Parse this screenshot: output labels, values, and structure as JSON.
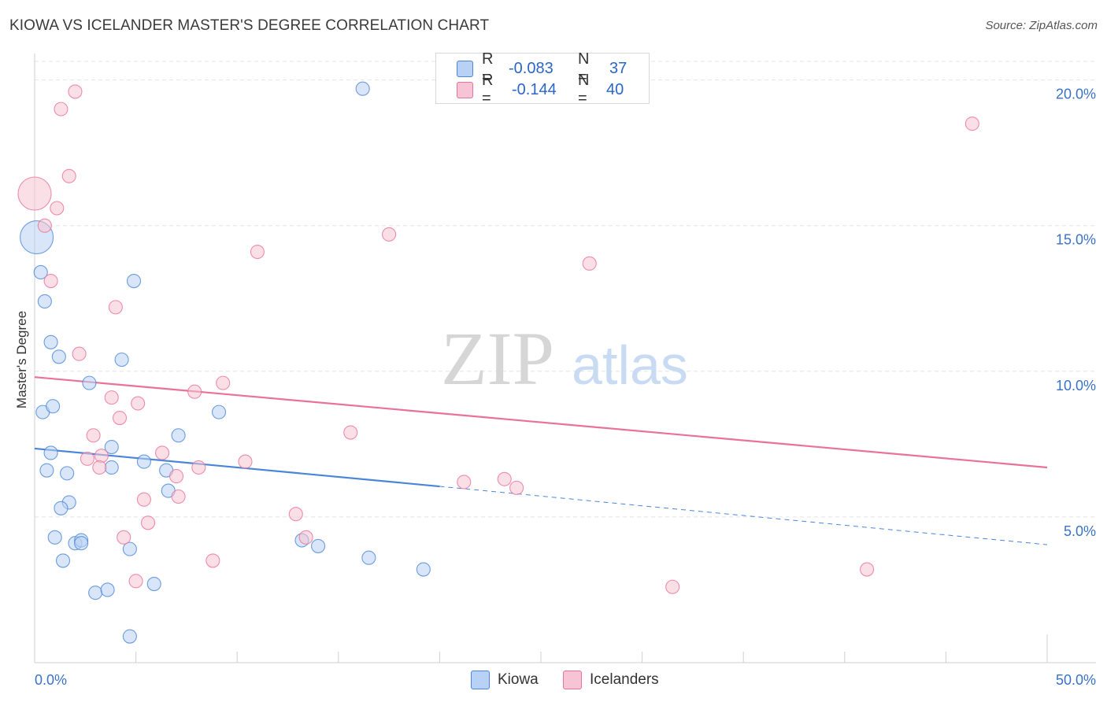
{
  "title": "KIOWA VS ICELANDER MASTER'S DEGREE CORRELATION CHART",
  "source": "Source: ZipAtlas.com",
  "watermark": {
    "zip": "ZIP",
    "atlas": "atlas"
  },
  "colors": {
    "blue": "#4a86d8",
    "blue_fill": "#b9d1f4",
    "pink": "#e8729a",
    "pink_fill": "#f6c4d4",
    "axis_text": "#3a72c4"
  },
  "stats": {
    "kiowa": {
      "r_label": "R =",
      "r_value": "-0.083",
      "n_label": "N =",
      "n_value": "37"
    },
    "icelanders": {
      "r_label": "R =",
      "r_value": "-0.144",
      "n_label": "N =",
      "n_value": "40"
    }
  },
  "legend": {
    "kiowa": "Kiowa",
    "icelanders": "Icelanders"
  },
  "chart_data": {
    "type": "scatter",
    "title": "KIOWA VS ICELANDER MASTER'S DEGREE CORRELATION CHART",
    "xlabel": "",
    "ylabel": "Master's Degree",
    "xlim": [
      0,
      50
    ],
    "ylim": [
      0,
      20.8
    ],
    "x_tick_labels": {
      "left": "0.0%",
      "right": "50.0%"
    },
    "y_ticks": [
      5,
      10,
      15,
      20
    ],
    "y_tick_labels": [
      "5.0%",
      "10.0%",
      "15.0%",
      "20.0%"
    ],
    "series": [
      {
        "name": "Kiowa",
        "color": "#4a86d8",
        "points": [
          [
            0.1,
            14.6,
            "large"
          ],
          [
            0.3,
            13.4
          ],
          [
            0.5,
            12.4
          ],
          [
            0.8,
            11.0
          ],
          [
            1.2,
            10.5
          ],
          [
            0.4,
            8.6
          ],
          [
            0.9,
            8.8
          ],
          [
            2.7,
            9.6
          ],
          [
            4.3,
            10.4
          ],
          [
            4.9,
            13.1
          ],
          [
            0.8,
            7.2
          ],
          [
            0.6,
            6.6
          ],
          [
            1.6,
            6.5
          ],
          [
            1.7,
            5.5
          ],
          [
            1.3,
            5.3
          ],
          [
            3.8,
            6.7
          ],
          [
            5.4,
            6.9
          ],
          [
            3.8,
            7.4
          ],
          [
            6.5,
            6.6
          ],
          [
            7.1,
            7.8
          ],
          [
            6.6,
            5.9
          ],
          [
            9.1,
            8.6
          ],
          [
            1.0,
            4.3
          ],
          [
            1.4,
            3.5
          ],
          [
            2.0,
            4.1
          ],
          [
            2.3,
            4.2
          ],
          [
            2.3,
            4.1
          ],
          [
            4.7,
            3.9
          ],
          [
            3.0,
            2.4
          ],
          [
            3.6,
            2.5
          ],
          [
            5.9,
            2.7
          ],
          [
            4.7,
            0.9
          ],
          [
            13.2,
            4.2
          ],
          [
            14.0,
            4.0
          ],
          [
            16.2,
            19.7
          ],
          [
            16.5,
            3.6
          ],
          [
            19.2,
            3.2
          ]
        ],
        "trend": {
          "x0": 0,
          "y0": 7.35,
          "x1": 20,
          "y1": 6.05,
          "dashed_to_x": 50,
          "dashed_to_y": 4.05
        }
      },
      {
        "name": "Icelanders",
        "color": "#e8729a",
        "points": [
          [
            0.0,
            16.1,
            "large"
          ],
          [
            1.3,
            19.0
          ],
          [
            2.0,
            19.6
          ],
          [
            1.7,
            16.7
          ],
          [
            1.1,
            15.6
          ],
          [
            0.5,
            15.0
          ],
          [
            0.8,
            13.1
          ],
          [
            4.0,
            12.2
          ],
          [
            2.2,
            10.6
          ],
          [
            3.8,
            9.1
          ],
          [
            5.1,
            8.9
          ],
          [
            4.2,
            8.4
          ],
          [
            7.9,
            9.3
          ],
          [
            9.3,
            9.6
          ],
          [
            2.9,
            7.8
          ],
          [
            2.6,
            7.0
          ],
          [
            3.3,
            7.1
          ],
          [
            3.2,
            6.7
          ],
          [
            6.3,
            7.2
          ],
          [
            8.1,
            6.7
          ],
          [
            7.0,
            6.4
          ],
          [
            10.4,
            6.9
          ],
          [
            11.0,
            14.1
          ],
          [
            17.5,
            14.7
          ],
          [
            5.4,
            5.6
          ],
          [
            7.1,
            5.7
          ],
          [
            5.6,
            4.8
          ],
          [
            4.4,
            4.3
          ],
          [
            5.0,
            2.8
          ],
          [
            8.8,
            3.5
          ],
          [
            12.9,
            5.1
          ],
          [
            13.4,
            4.3
          ],
          [
            15.6,
            7.9
          ],
          [
            21.2,
            6.2
          ],
          [
            23.2,
            6.3
          ],
          [
            23.8,
            6.0
          ],
          [
            27.4,
            13.7
          ],
          [
            31.5,
            2.6
          ],
          [
            41.1,
            3.2
          ],
          [
            46.3,
            18.5
          ]
        ],
        "trend": {
          "x0": 0,
          "y0": 9.8,
          "x1": 50,
          "y1": 6.7
        }
      }
    ]
  }
}
